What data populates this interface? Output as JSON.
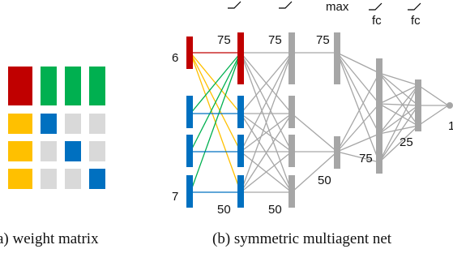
{
  "colors": {
    "red": "#c00000",
    "green": "#00b050",
    "yellow": "#ffc000",
    "blue": "#0070c0",
    "gray": "#a6a6a6",
    "lightgray": "#d9d9d9"
  },
  "weight_matrix": {
    "cells": [
      [
        "red",
        "green",
        "green",
        "green"
      ],
      [
        "yellow",
        "blue",
        "lightgray",
        "lightgray"
      ],
      [
        "yellow",
        "lightgray",
        "blue",
        "lightgray"
      ],
      [
        "yellow",
        "lightgray",
        "lightgray",
        "blue"
      ]
    ]
  },
  "network": {
    "input_top_size": "6",
    "input_bottom_size": "7",
    "layer1_top_size": "75",
    "layer1_bottom_size": "50",
    "layer2_top_size": "75",
    "layer2_bottom_size": "50",
    "pool_top_size": "75",
    "pool_bottom_size": "50",
    "pool_op": "max",
    "fc1_size": "75",
    "fc2_size": "25",
    "fc1_op": "fc",
    "fc2_op": "fc",
    "output_size": "1"
  },
  "captions": {
    "left": "a) weight matrix",
    "right": "(b) symmetric multiagent net"
  }
}
